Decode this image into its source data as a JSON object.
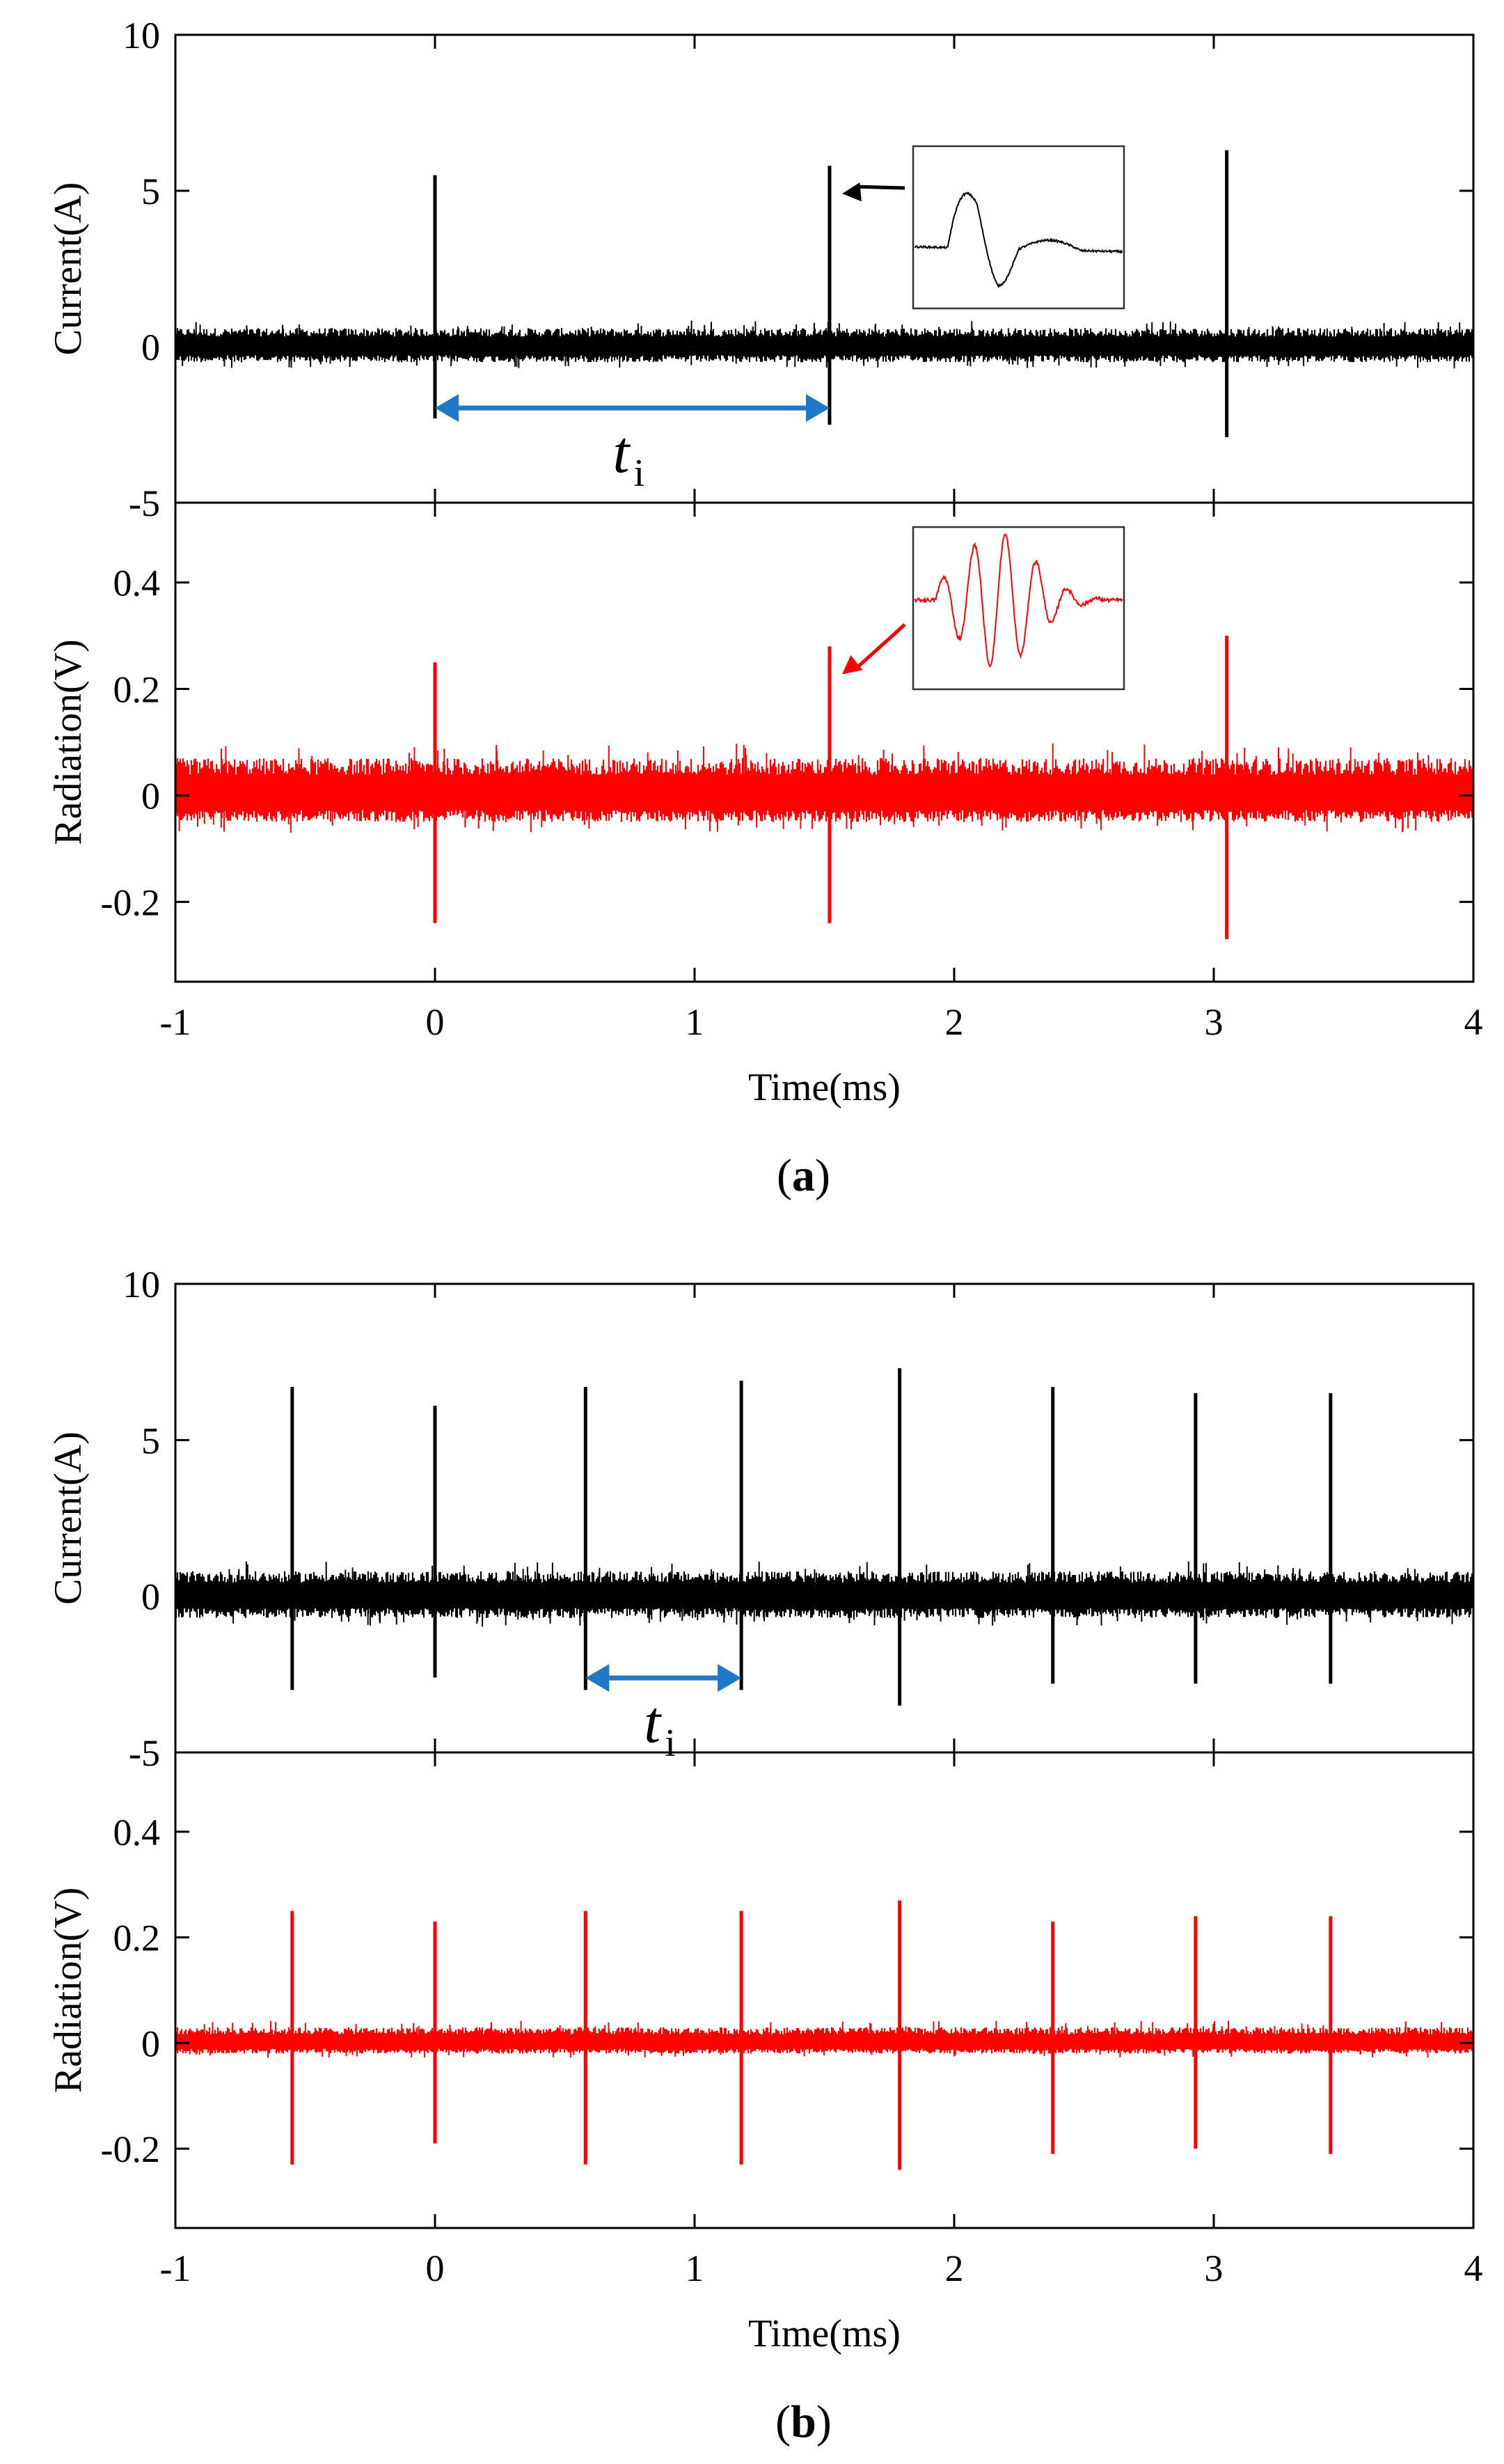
{
  "colors": {
    "current": "#000000",
    "radiation": "#ff0000",
    "interval_arrow": "#1f78c8",
    "axis": "#000000"
  },
  "chart_data": [
    {
      "panel": "a",
      "type": "line",
      "caption_letter": "a",
      "caption_open": "(",
      "caption_close": ")",
      "xlabel": "Time(ms)",
      "xlim": [
        -1,
        4
      ],
      "xticks": [
        -1,
        0,
        1,
        2,
        3,
        4
      ],
      "xtick_labels": [
        "-1",
        "0",
        "1",
        "2",
        "3",
        "4"
      ],
      "interval_label": "t",
      "interval_sub": "i",
      "interval": [
        0,
        1.52
      ],
      "current": {
        "ylabel": "Current(A)",
        "ylim": [
          -5,
          10
        ],
        "yticks": [
          -5,
          0,
          5,
          10
        ],
        "ytick_labels": [
          "-5",
          "0",
          "5",
          "10"
        ],
        "noise": [
          -0.5,
          0.6
        ],
        "pulses": [
          {
            "t": 0.0,
            "peak": 5.5,
            "trough": -2.3
          },
          {
            "t": 1.52,
            "peak": 5.8,
            "trough": -2.5
          },
          {
            "t": 3.05,
            "peak": 6.3,
            "trough": -2.9
          }
        ],
        "inset": true
      },
      "radiation": {
        "ylabel": "Radiation(V)",
        "ylim": [
          -0.35,
          0.55
        ],
        "yticks": [
          -0.2,
          0,
          0.2,
          0.4
        ],
        "ytick_labels": [
          "-0.2",
          "0",
          "0.2",
          "0.4"
        ],
        "noise": [
          -0.05,
          0.07
        ],
        "pulses": [
          {
            "t": 0.0,
            "peak": 0.25,
            "trough": -0.24
          },
          {
            "t": 1.52,
            "peak": 0.28,
            "trough": -0.24
          },
          {
            "t": 3.05,
            "peak": 0.3,
            "trough": -0.27
          }
        ],
        "inset": true
      }
    },
    {
      "panel": "b",
      "type": "line",
      "caption_letter": "b",
      "caption_open": "(",
      "caption_close": ")",
      "xlabel": "Time(ms)",
      "xlim": [
        -1,
        4
      ],
      "xticks": [
        -1,
        0,
        1,
        2,
        3,
        4
      ],
      "xtick_labels": [
        "-1",
        "0",
        "1",
        "2",
        "3",
        "4"
      ],
      "interval_label": "t",
      "interval_sub": "i",
      "interval": [
        0.58,
        1.18
      ],
      "current": {
        "ylabel": "Current(A)",
        "ylim": [
          -5,
          10
        ],
        "yticks": [
          -5,
          0,
          5,
          10
        ],
        "ytick_labels": [
          "-5",
          "0",
          "5",
          "10"
        ],
        "noise": [
          -0.7,
          0.8
        ],
        "pulses": [
          {
            "t": -0.55,
            "peak": 6.7,
            "trough": -3.0
          },
          {
            "t": 0.0,
            "peak": 6.1,
            "trough": -2.6
          },
          {
            "t": 0.58,
            "peak": 6.7,
            "trough": -3.0
          },
          {
            "t": 1.18,
            "peak": 6.9,
            "trough": -3.0
          },
          {
            "t": 1.79,
            "peak": 7.3,
            "trough": -3.5
          },
          {
            "t": 2.38,
            "peak": 6.7,
            "trough": -2.8
          },
          {
            "t": 2.93,
            "peak": 6.5,
            "trough": -2.8
          },
          {
            "t": 3.45,
            "peak": 6.5,
            "trough": -2.8
          }
        ],
        "inset": false
      },
      "radiation": {
        "ylabel": "Radiation(V)",
        "ylim": [
          -0.35,
          0.55
        ],
        "yticks": [
          -0.2,
          0,
          0.2,
          0.4
        ],
        "ytick_labels": [
          "-0.2",
          "0",
          "0.2",
          "0.4"
        ],
        "noise": [
          -0.02,
          0.03
        ],
        "pulses": [
          {
            "t": -0.55,
            "peak": 0.25,
            "trough": -0.23
          },
          {
            "t": 0.0,
            "peak": 0.23,
            "trough": -0.19
          },
          {
            "t": 0.58,
            "peak": 0.25,
            "trough": -0.23
          },
          {
            "t": 1.18,
            "peak": 0.25,
            "trough": -0.23
          },
          {
            "t": 1.79,
            "peak": 0.27,
            "trough": -0.24
          },
          {
            "t": 2.38,
            "peak": 0.23,
            "trough": -0.21
          },
          {
            "t": 2.93,
            "peak": 0.24,
            "trough": -0.2
          },
          {
            "t": 3.45,
            "peak": 0.24,
            "trough": -0.21
          }
        ],
        "inset": false
      }
    }
  ]
}
